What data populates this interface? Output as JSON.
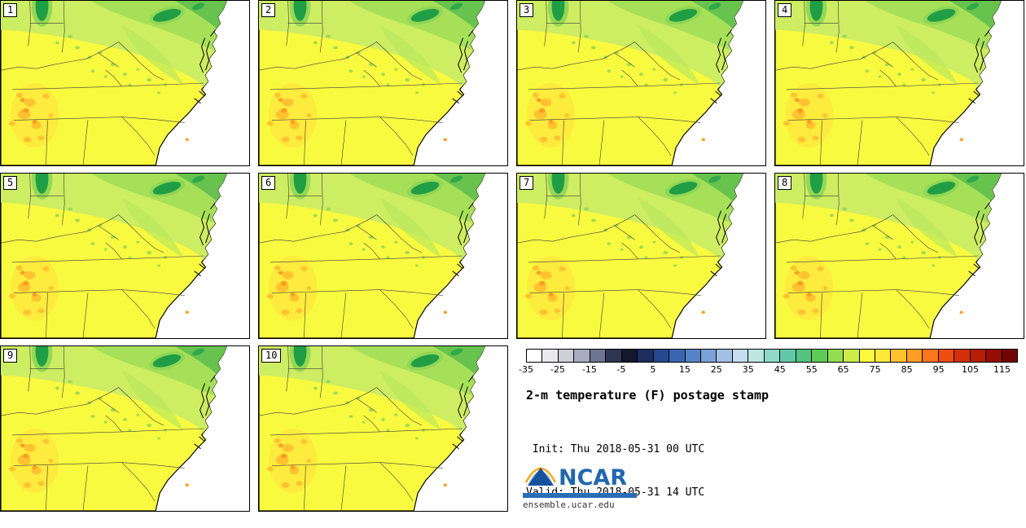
{
  "panels": [
    {
      "label": "1"
    },
    {
      "label": "2"
    },
    {
      "label": "3"
    },
    {
      "label": "4"
    },
    {
      "label": "5"
    },
    {
      "label": "6"
    },
    {
      "label": "7"
    },
    {
      "label": "8"
    },
    {
      "label": "9"
    },
    {
      "label": "10"
    }
  ],
  "colorbar": {
    "min": -35,
    "max": 120,
    "step": 5,
    "tick_labels": [
      "-35",
      "-25",
      "-15",
      "-5",
      "5",
      "15",
      "25",
      "35",
      "45",
      "55",
      "65",
      "75",
      "85",
      "95",
      "105",
      "115"
    ],
    "segment_colors": [
      "#FFFFFF",
      "#EAEAEE",
      "#CFCFD8",
      "#A8ACBE",
      "#6E7492",
      "#303652",
      "#14182E",
      "#1C2D5E",
      "#27488E",
      "#3A66B0",
      "#5584C6",
      "#7AA2D6",
      "#A3C0E4",
      "#C6DCEF",
      "#BCE7E3",
      "#8FD9CB",
      "#62C9A8",
      "#52C47E",
      "#5ECB58",
      "#94DC50",
      "#CCEC48",
      "#F8FA40",
      "#FFE838",
      "#FFC22E",
      "#FF9D24",
      "#FB761B",
      "#EF4D11",
      "#D5300B",
      "#B71C06",
      "#950D03",
      "#720401"
    ]
  },
  "info": {
    "title": "2-m temperature (F) postage stamp",
    "init_line": " Init: Thu 2018-05-31 00 UTC",
    "valid_line": "Valid: Thu 2018-05-31 14 UTC"
  },
  "logo": {
    "text": "NCAR",
    "url_text": "ensemble.ucar.edu",
    "brand_color": "#2167AE"
  },
  "map_palette": {
    "ocean_white": "#FFFFFF",
    "land_yellow": "#F8FA40",
    "light_green": "#CDED62",
    "medium_green": "#A6E058",
    "dark_green": "#68C24E",
    "lake_green": "#209E45",
    "warm_orange": "#FFC330",
    "hot_orange": "#FF9E23"
  }
}
